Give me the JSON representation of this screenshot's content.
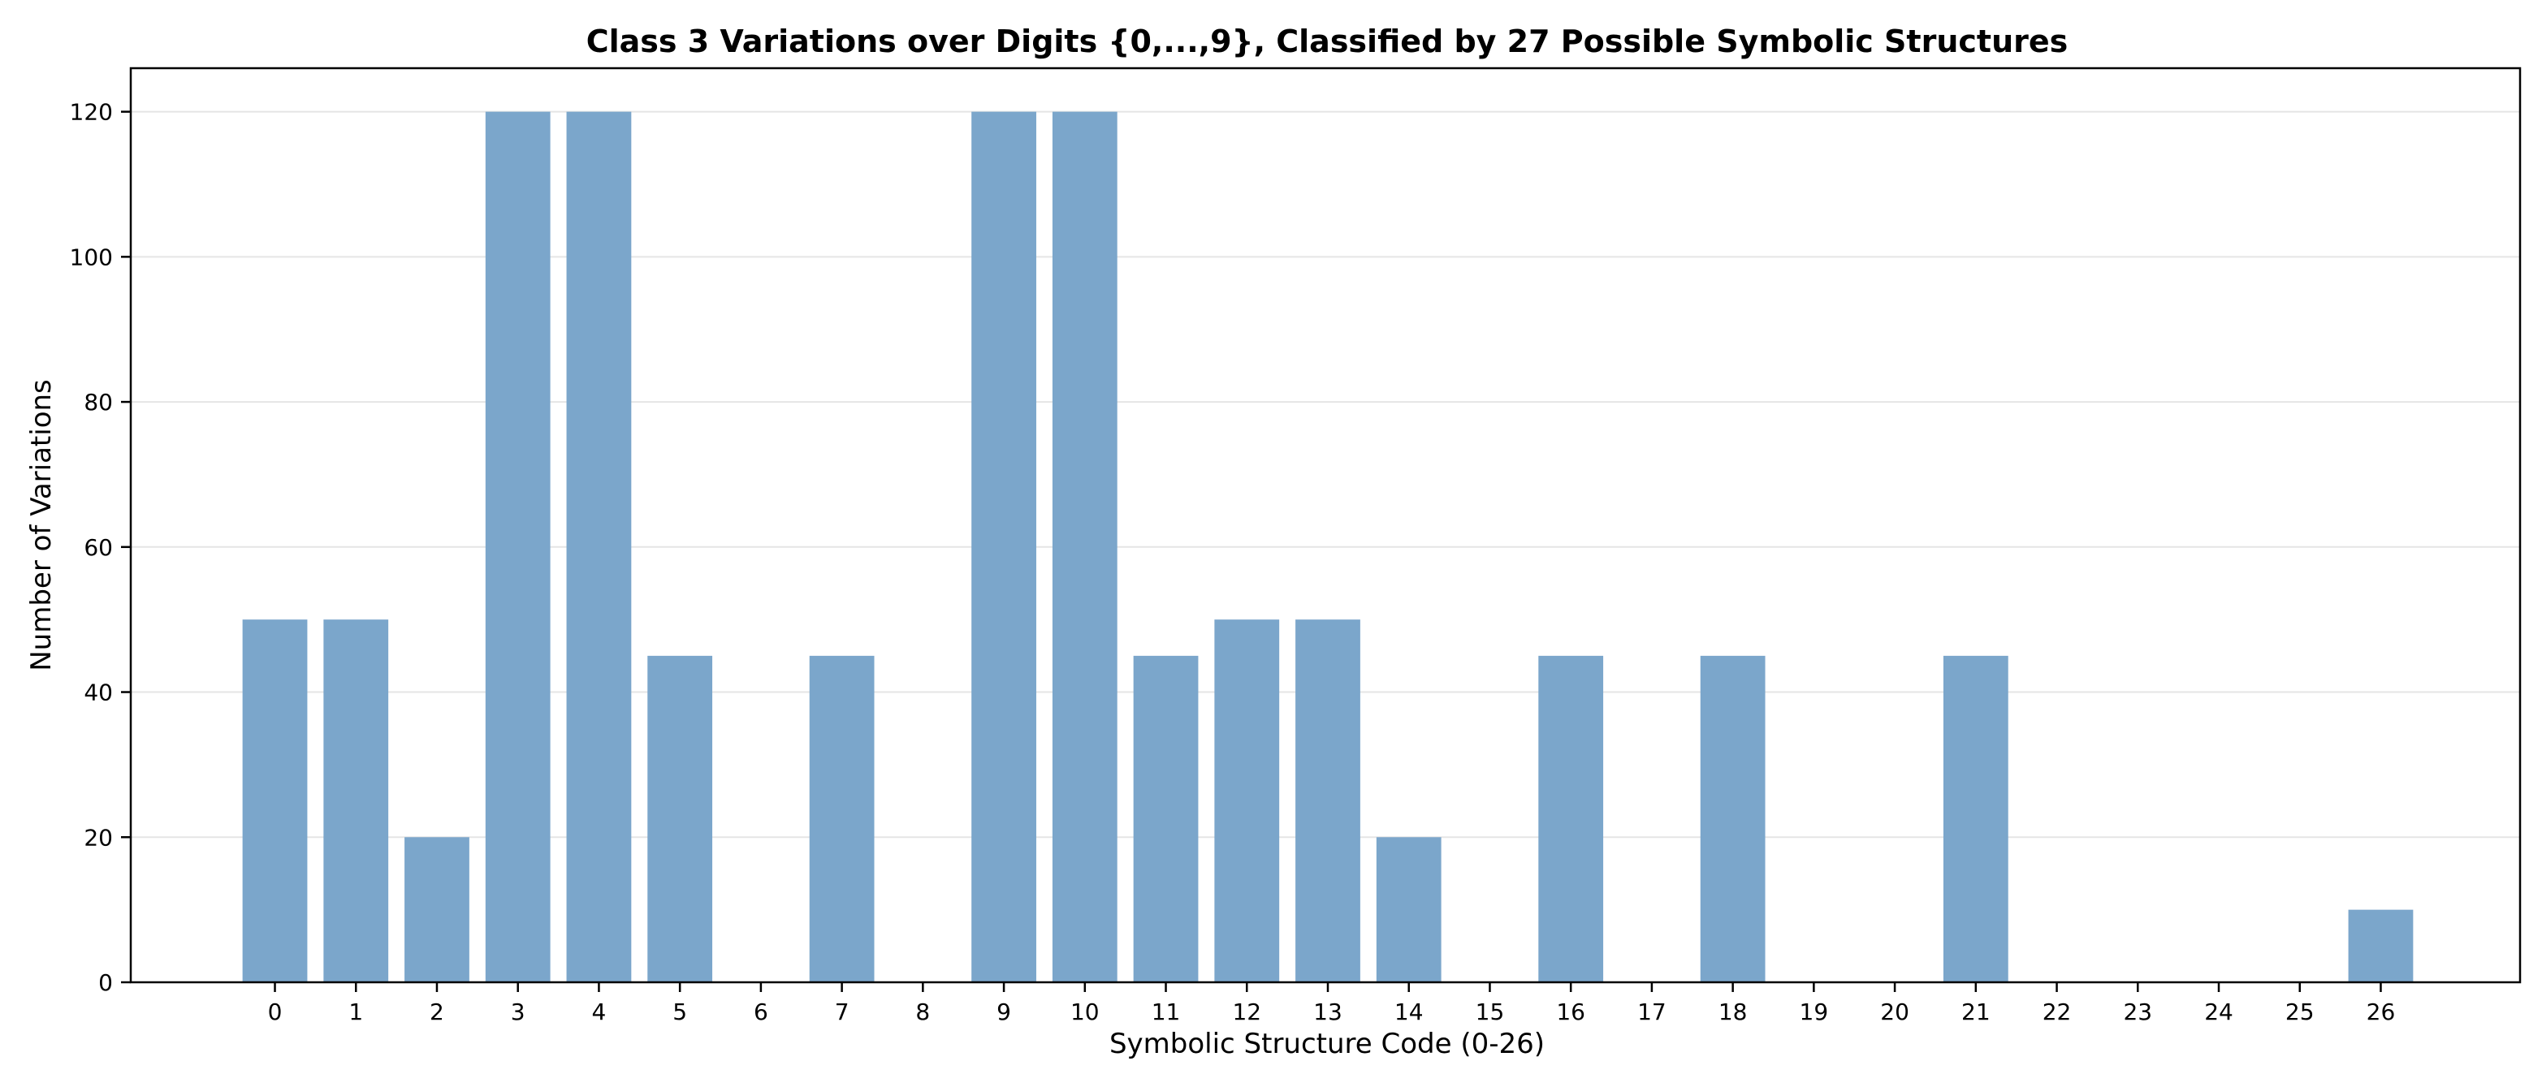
{
  "chart_data": {
    "type": "bar",
    "title": "Class 3 Variations over Digits {0,...,9}, Classified by 27 Possible Symbolic Structures",
    "xlabel": "Symbolic Structure Code (0-26)",
    "ylabel": "Number of Variations",
    "categories": [
      "0",
      "1",
      "2",
      "3",
      "4",
      "5",
      "6",
      "7",
      "8",
      "9",
      "10",
      "11",
      "12",
      "13",
      "14",
      "15",
      "16",
      "17",
      "18",
      "19",
      "20",
      "21",
      "22",
      "23",
      "24",
      "25",
      "26"
    ],
    "values": [
      50,
      50,
      20,
      120,
      120,
      45,
      0,
      45,
      0,
      120,
      120,
      45,
      50,
      50,
      20,
      0,
      45,
      0,
      45,
      0,
      0,
      45,
      0,
      0,
      0,
      0,
      10
    ],
    "ylim": [
      0,
      126
    ],
    "yticks": [
      0,
      20,
      40,
      60,
      80,
      100,
      120
    ],
    "xlim": [
      -1.78,
      27.72
    ],
    "grid": "y",
    "bar_color": "#7ba6cb"
  }
}
